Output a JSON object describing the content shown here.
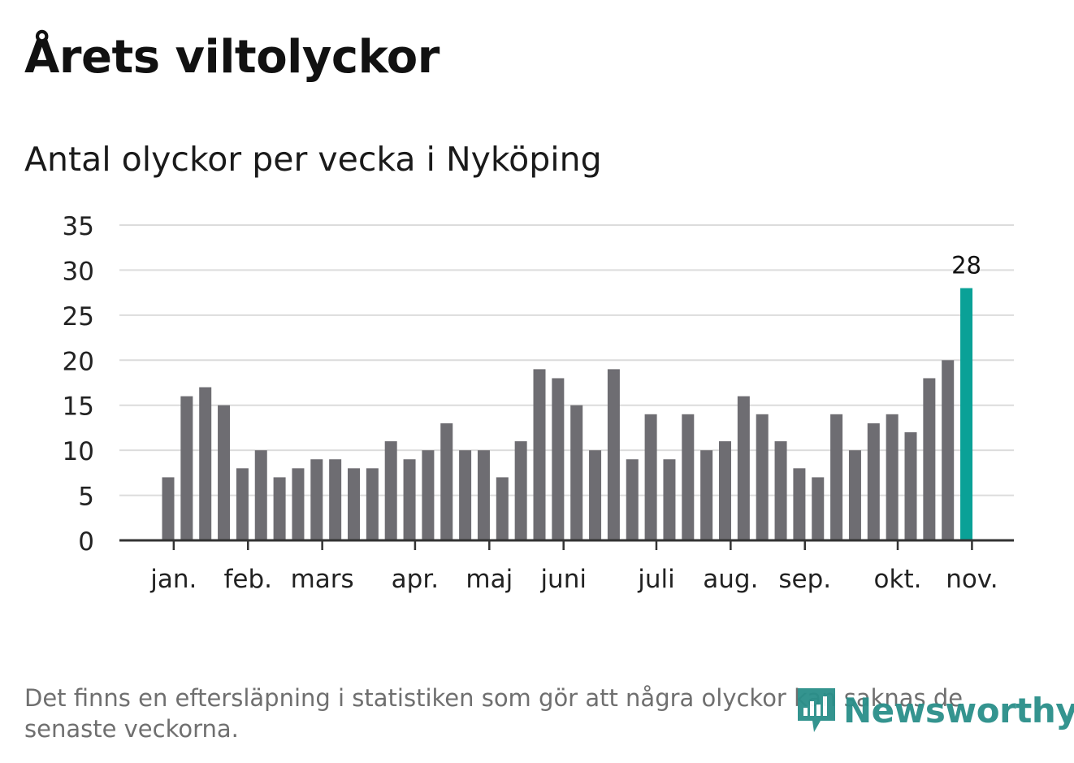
{
  "title": "Årets viltolyckor",
  "subtitle": "Antal olyckor per vecka i Nyköping",
  "footnote": "Det finns en eftersläpning i statistiken som gör att några olyckor kan saknas de senaste veckorna.",
  "logo": {
    "text": "Newsworthy",
    "icon": "newsworthy-logo-icon"
  },
  "colors": {
    "bar": "#6e6d72",
    "highlight": "#0aa197",
    "grid": "#dcdcdc",
    "axis": "#333333"
  },
  "chart_data": {
    "type": "bar",
    "x": [
      1,
      2,
      3,
      4,
      5,
      6,
      7,
      8,
      9,
      10,
      11,
      12,
      13,
      14,
      15,
      16,
      17,
      18,
      19,
      20,
      21,
      22,
      23,
      24,
      25,
      26,
      27,
      28,
      29,
      30,
      31,
      32,
      33,
      34,
      35,
      36,
      37,
      38,
      39,
      40,
      41,
      42,
      43,
      44
    ],
    "values": [
      7,
      16,
      17,
      15,
      8,
      10,
      7,
      8,
      9,
      9,
      8,
      8,
      11,
      9,
      10,
      13,
      10,
      10,
      7,
      11,
      19,
      18,
      15,
      10,
      19,
      9,
      14,
      9,
      14,
      10,
      11,
      16,
      14,
      11,
      8,
      7,
      14,
      10,
      13,
      14,
      12,
      18,
      20,
      28
    ],
    "highlight_index": 43,
    "highlight_label": "28",
    "ylim": [
      0,
      35
    ],
    "yticks": [
      "0",
      "5",
      "10",
      "15",
      "20",
      "25",
      "30",
      "35"
    ],
    "month_labels": [
      {
        "label": "jan.",
        "week": 1.3
      },
      {
        "label": "feb.",
        "week": 5.3
      },
      {
        "label": "mars",
        "week": 9.3
      },
      {
        "label": "apr.",
        "week": 14.3
      },
      {
        "label": "maj",
        "week": 18.3
      },
      {
        "label": "juni",
        "week": 22.3
      },
      {
        "label": "juli",
        "week": 27.3
      },
      {
        "label": "aug.",
        "week": 31.3
      },
      {
        "label": "sep.",
        "week": 35.3
      },
      {
        "label": "okt.",
        "week": 40.3
      },
      {
        "label": "nov.",
        "week": 44.3
      }
    ],
    "grid": true
  }
}
